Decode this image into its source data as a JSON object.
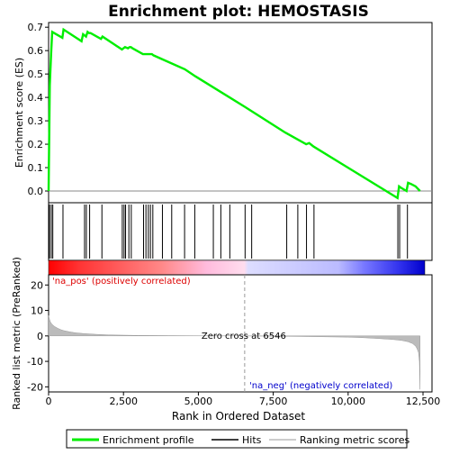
{
  "chart_data": {
    "type": "line",
    "title": "Enrichment plot: HEMOSTASIS",
    "panels": {
      "enrichment": {
        "ylabel": "Enrichment score (ES)",
        "ylim": [
          -0.05,
          0.72
        ],
        "yticks": [
          "0.0",
          "0.1",
          "0.2",
          "0.3",
          "0.4",
          "0.5",
          "0.6",
          "0.7"
        ],
        "series": [
          {
            "name": "Enrichment profile",
            "color": "#00ee00",
            "x": [
              0,
              40,
              80,
              120,
              460,
              500,
              1100,
              1150,
              1250,
              1300,
              1350,
              1400,
              1750,
              1800,
              2450,
              2500,
              2550,
              2650,
              2700,
              2750,
              2800,
              3150,
              3200,
              3450,
              3500,
              4550,
              4900,
              6546,
              7900,
              8600,
              8700,
              8850,
              11650,
              11700,
              11750,
              11950,
              12000,
              12100,
              12250,
              12400
            ],
            "y": [
              0.0,
              0.45,
              0.58,
              0.68,
              0.655,
              0.69,
              0.64,
              0.67,
              0.66,
              0.68,
              0.675,
              0.675,
              0.65,
              0.66,
              0.605,
              0.61,
              0.615,
              0.61,
              0.615,
              0.615,
              0.61,
              0.585,
              0.585,
              0.585,
              0.58,
              0.52,
              0.49,
              0.36,
              0.25,
              0.2,
              0.205,
              0.19,
              -0.03,
              0.02,
              0.015,
              0.0,
              0.035,
              0.03,
              0.02,
              0.0
            ]
          }
        ]
      },
      "hits": {
        "label": "Hits",
        "positions": [
          30,
          90,
          140,
          480,
          1200,
          1260,
          1370,
          1780,
          2460,
          2520,
          2570,
          2680,
          2760,
          3170,
          3250,
          3330,
          3400,
          3480,
          3800,
          4110,
          4540,
          4880,
          5500,
          5750,
          6050,
          6560,
          6780,
          7950,
          8320,
          8610,
          8860,
          11660,
          11720,
          11980
        ]
      },
      "ranked_metric": {
        "ylabel": "Ranked list metric (PreRanked)",
        "ylim": [
          -22,
          24
        ],
        "yticks": [
          "20",
          "10",
          "0",
          "-10",
          "-20"
        ],
        "series": [
          {
            "name": "Ranking metric scores",
            "x": [
              0,
              30,
              60,
              100,
              150,
              200,
              300,
              400,
              500,
              700,
              900,
              1200,
              1600,
              2000,
              3000,
              4000,
              5000,
              6000,
              6546,
              7000,
              8000,
              9000,
              10000,
              10500,
              11000,
              11500,
              11800,
              12000,
              12150,
              12250,
              12300,
              12350,
              12380,
              12400
            ],
            "y": [
              8,
              6.5,
              5.5,
              4.8,
              4.2,
              3.7,
              3.0,
              2.5,
              2.1,
              1.6,
              1.2,
              0.9,
              0.6,
              0.4,
              0.2,
              0.1,
              0.05,
              0.02,
              0,
              -0.05,
              -0.15,
              -0.3,
              -0.5,
              -0.7,
              -1.0,
              -1.4,
              -1.8,
              -2.3,
              -3.0,
              -4.0,
              -5.0,
              -6.5,
              -10,
              -21
            ]
          }
        ],
        "zero_cross_label": "Zero cross at 6546",
        "zero_cross": 6546,
        "pos_label": "'na_pos' (positively correlated)",
        "neg_label": "'na_neg' (negatively correlated)"
      }
    },
    "xlabel": "Rank in Ordered Dataset",
    "xlim": [
      0,
      12800
    ],
    "xticks": [
      "0",
      "2,500",
      "5,000",
      "7,500",
      "10,000",
      "12,500"
    ],
    "legend": {
      "placement": "bottom",
      "items": [
        {
          "label": "Enrichment profile",
          "color": "#00ee00"
        },
        {
          "label": "Hits",
          "color": "#000000"
        },
        {
          "label": "Ranking metric scores",
          "color": "#bbbbbb"
        }
      ]
    },
    "colors": {
      "pos_text": "#dd0000",
      "neg_text": "#0000cc"
    }
  }
}
